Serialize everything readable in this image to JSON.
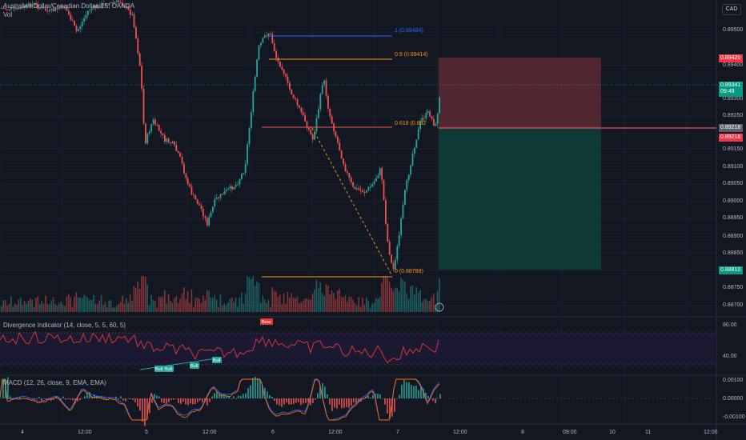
{
  "header": {
    "title": "Australian Dollar/Canadian Dollar, 15, OANDA",
    "vol_label": "Vol",
    "currency": "CAD"
  },
  "price_axis": {
    "labels": [
      "0.89500",
      "0.89400",
      "0.89300",
      "0.89250",
      "0.89150",
      "0.89100",
      "0.89050",
      "0.89000",
      "0.88950",
      "0.88900",
      "0.88850",
      "0.88750",
      "0.88700"
    ]
  },
  "price_tags": {
    "stop": {
      "value": "0.89420",
      "color": "#f23645"
    },
    "current": {
      "value": "0.89341",
      "time": "09:49",
      "color": "#089981"
    },
    "entry_a": {
      "value": "0.89218",
      "color": "#5d606b"
    },
    "entry_b": {
      "value": "0.89218",
      "color": "#f23645"
    },
    "target": {
      "value": "0.88810",
      "color": "#089981"
    }
  },
  "fib": {
    "level_1": "1 (0.89484)",
    "level_09": "0.9 (0.89414)",
    "level_0618": "0.618 (0.892",
    "level_0": "0 (0.88788)"
  },
  "divergence": {
    "label": "Divergence Indicator (14, close, 5, 5, 60, 5)",
    "axis": [
      "80.00",
      "40.00"
    ],
    "bear_tag": "Bear",
    "bull_tag": "Bull"
  },
  "macd": {
    "label": "MACD (12, 26, close, 9, EMA, EMA)",
    "axis": [
      "0.00100",
      "0.00000",
      "-0.00100"
    ]
  },
  "time_axis": {
    "labels": [
      "4",
      "12:00",
      "5",
      "12:00",
      "6",
      "12:00",
      "7",
      "12:00",
      "8",
      "09:00",
      "10",
      "11",
      "12:00"
    ]
  },
  "colors": {
    "bg": "#131722",
    "up": "#26a69a",
    "down": "#ef5350",
    "fib_blue": "#2962ff",
    "fib_orange": "#f7931a",
    "stop_zone": "#5c2a33",
    "target_zone": "#0f3d3a"
  }
}
